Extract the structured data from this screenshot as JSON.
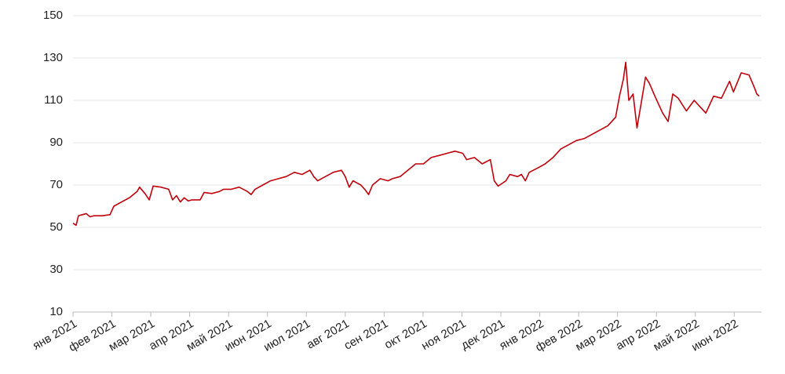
{
  "chart_data": {
    "type": "line",
    "x": [
      0,
      0.08,
      0.14,
      0.24,
      0.34,
      0.44,
      0.54,
      0.75,
      0.95,
      1.05,
      1.25,
      1.45,
      1.65,
      1.71,
      1.85,
      1.96,
      2.06,
      2.26,
      2.46,
      2.56,
      2.66,
      2.76,
      2.86,
      2.96,
      3.06,
      3.27,
      3.37,
      3.57,
      3.77,
      3.87,
      4.07,
      4.27,
      4.48,
      4.58,
      4.68,
      4.88,
      5.08,
      5.28,
      5.48,
      5.69,
      5.89,
      6.09,
      6.19,
      6.29,
      6.49,
      6.69,
      6.9,
      7.0,
      7.1,
      7.2,
      7.3,
      7.4,
      7.5,
      7.6,
      7.7,
      7.9,
      8.1,
      8.21,
      8.41,
      8.61,
      8.81,
      9.01,
      9.21,
      9.42,
      9.62,
      9.82,
      10.02,
      10.12,
      10.32,
      10.52,
      10.73,
      10.83,
      10.93,
      11.13,
      11.23,
      11.43,
      11.53,
      11.63,
      11.73,
      11.94,
      12.14,
      12.34,
      12.54,
      12.74,
      12.94,
      13.15,
      13.35,
      13.55,
      13.75,
      13.95,
      14.05,
      14.15,
      14.21,
      14.29,
      14.4,
      14.5,
      14.62,
      14.72,
      14.82,
      14.96,
      15.16,
      15.3,
      15.42,
      15.56,
      15.77,
      15.97,
      16.17,
      16.27,
      16.47,
      16.67,
      16.88,
      16.98,
      17.18,
      17.38,
      17.52,
      17.58,
      17.64
    ],
    "series": [
      {
        "color": "#c0000b",
        "values": [
          52,
          51,
          55.5,
          56,
          56.5,
          55,
          55.5,
          55.5,
          56,
          60,
          62,
          64,
          67,
          69,
          66,
          63,
          69.5,
          69,
          68,
          63,
          65,
          62,
          64,
          62.5,
          63,
          63,
          66.5,
          66,
          67,
          68,
          68,
          69,
          67,
          65.5,
          68,
          70,
          72,
          73,
          74,
          76,
          75,
          77,
          74,
          72,
          74,
          76,
          77,
          74,
          69,
          72,
          71,
          70,
          68,
          65.5,
          70,
          73,
          72,
          73,
          74,
          77,
          80,
          80,
          83,
          84,
          85,
          86,
          85,
          82,
          83,
          80,
          82,
          72,
          69.5,
          72,
          75,
          74,
          75,
          72,
          76,
          78,
          80,
          83,
          87,
          89,
          91,
          92,
          94,
          96,
          98,
          102,
          112,
          120,
          128,
          110,
          113,
          97,
          110,
          121,
          118,
          112,
          104,
          100,
          113,
          111,
          105,
          110,
          106,
          104,
          112,
          111,
          119,
          114,
          123,
          122,
          116,
          113,
          112
        ]
      }
    ],
    "xlim": [
      0,
      17.7
    ],
    "xticks": [
      {
        "value": 0,
        "label": "янв 2021"
      },
      {
        "value": 1,
        "label": "фев 2021"
      },
      {
        "value": 2,
        "label": "мар 2021"
      },
      {
        "value": 3,
        "label": "апр 2021"
      },
      {
        "value": 4,
        "label": "май 2021"
      },
      {
        "value": 5,
        "label": "июн 2021"
      },
      {
        "value": 6,
        "label": "июл 2021"
      },
      {
        "value": 7,
        "label": "авг 2021"
      },
      {
        "value": 8,
        "label": "сен 2021"
      },
      {
        "value": 9,
        "label": "окт 2021"
      },
      {
        "value": 10,
        "label": "ноя 2021"
      },
      {
        "value": 11,
        "label": "дек 2021"
      },
      {
        "value": 12,
        "label": "янв 2022"
      },
      {
        "value": 13,
        "label": "фев 2022"
      },
      {
        "value": 14,
        "label": "мар 2022"
      },
      {
        "value": 15,
        "label": "апр 2022"
      },
      {
        "value": 16,
        "label": "май 2022"
      },
      {
        "value": 17,
        "label": "июн 2022"
      }
    ],
    "ylim": [
      10,
      150
    ],
    "yticks": [
      10,
      30,
      50,
      70,
      90,
      110,
      130,
      150
    ],
    "grid": true
  }
}
